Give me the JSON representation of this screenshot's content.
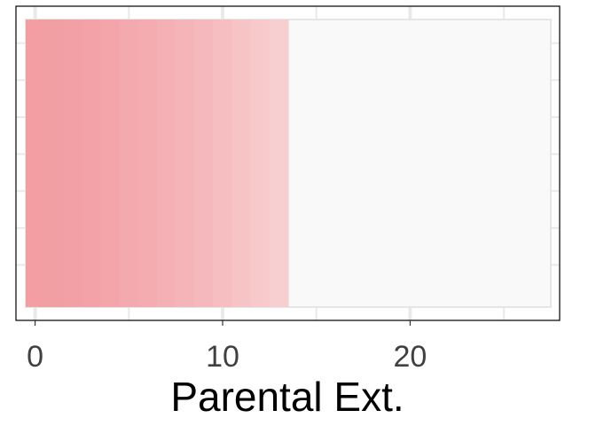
{
  "chart_data": {
    "type": "bar",
    "orientation": "horizontal",
    "xlabel": "Parental Ext.",
    "ylabel": "",
    "title": "",
    "xlim": [
      -0.5,
      27.5
    ],
    "xticks": [
      0,
      10,
      20
    ],
    "xtick_labels": [
      "0",
      "10",
      "20"
    ],
    "grid": true,
    "max_value": 27,
    "value": 13,
    "gradient_segments": [
      0,
      1,
      2,
      3,
      4,
      5,
      6,
      7,
      8,
      9,
      10,
      11,
      12,
      13
    ],
    "colors": {
      "bar_start": "#f29ea3",
      "bar_end": "#f8cfd1",
      "track": "#f9f9f9",
      "grid": "#e9e9e9",
      "frame": "#000000"
    }
  }
}
